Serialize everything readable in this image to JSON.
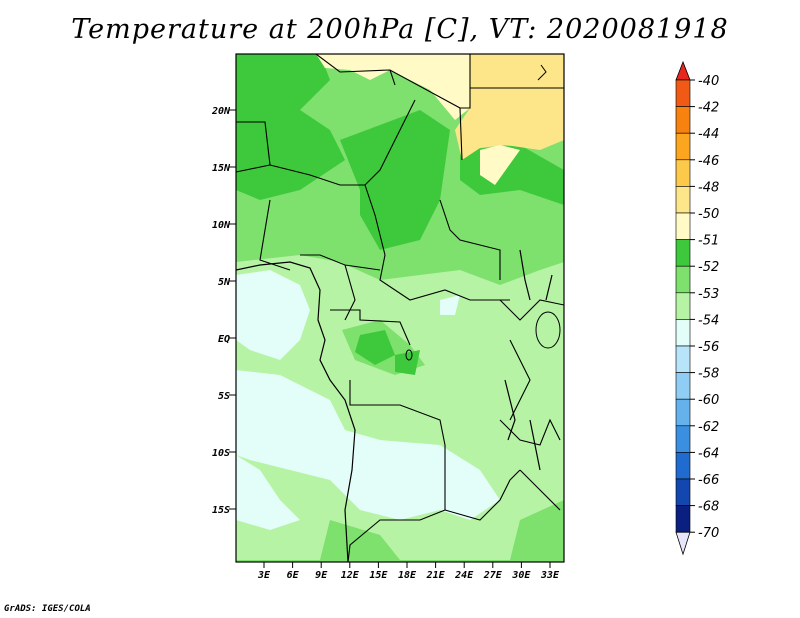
{
  "title": "Temperature at 200hPa [C], VT: 2020081918",
  "credit": "GrADS: IGES/COLA",
  "map": {
    "lon_range": [
      0,
      36
    ],
    "lat_range": [
      -20,
      25
    ],
    "lat_ticks": [
      "20N",
      "15N",
      "10N",
      "5N",
      "EQ",
      "5S",
      "10S",
      "15S"
    ],
    "lon_ticks": [
      "3E",
      "6E",
      "9E",
      "12E",
      "15E",
      "18E",
      "21E",
      "24E",
      "27E",
      "30E",
      "33E"
    ]
  },
  "colorbar": {
    "labels": [
      "-40",
      "-42",
      "-44",
      "-46",
      "-48",
      "-50",
      "-51",
      "-52",
      "-53",
      "-54",
      "-56",
      "-58",
      "-60",
      "-62",
      "-64",
      "-66",
      "-68",
      "-70"
    ],
    "colors": [
      "#e6261f",
      "#f05a14",
      "#f7820f",
      "#fca51e",
      "#fdc94a",
      "#fde68a",
      "#fffac6",
      "#3ec93c",
      "#7ee06d",
      "#b6f3a4",
      "#e3fdf8",
      "#b8e4fa",
      "#8fcdf5",
      "#64b1ec",
      "#3a8fe0",
      "#1f6bd0",
      "#1446b0",
      "#0b1f80",
      "#000e5a"
    ],
    "bottom_color": "#e6e6fa"
  }
}
